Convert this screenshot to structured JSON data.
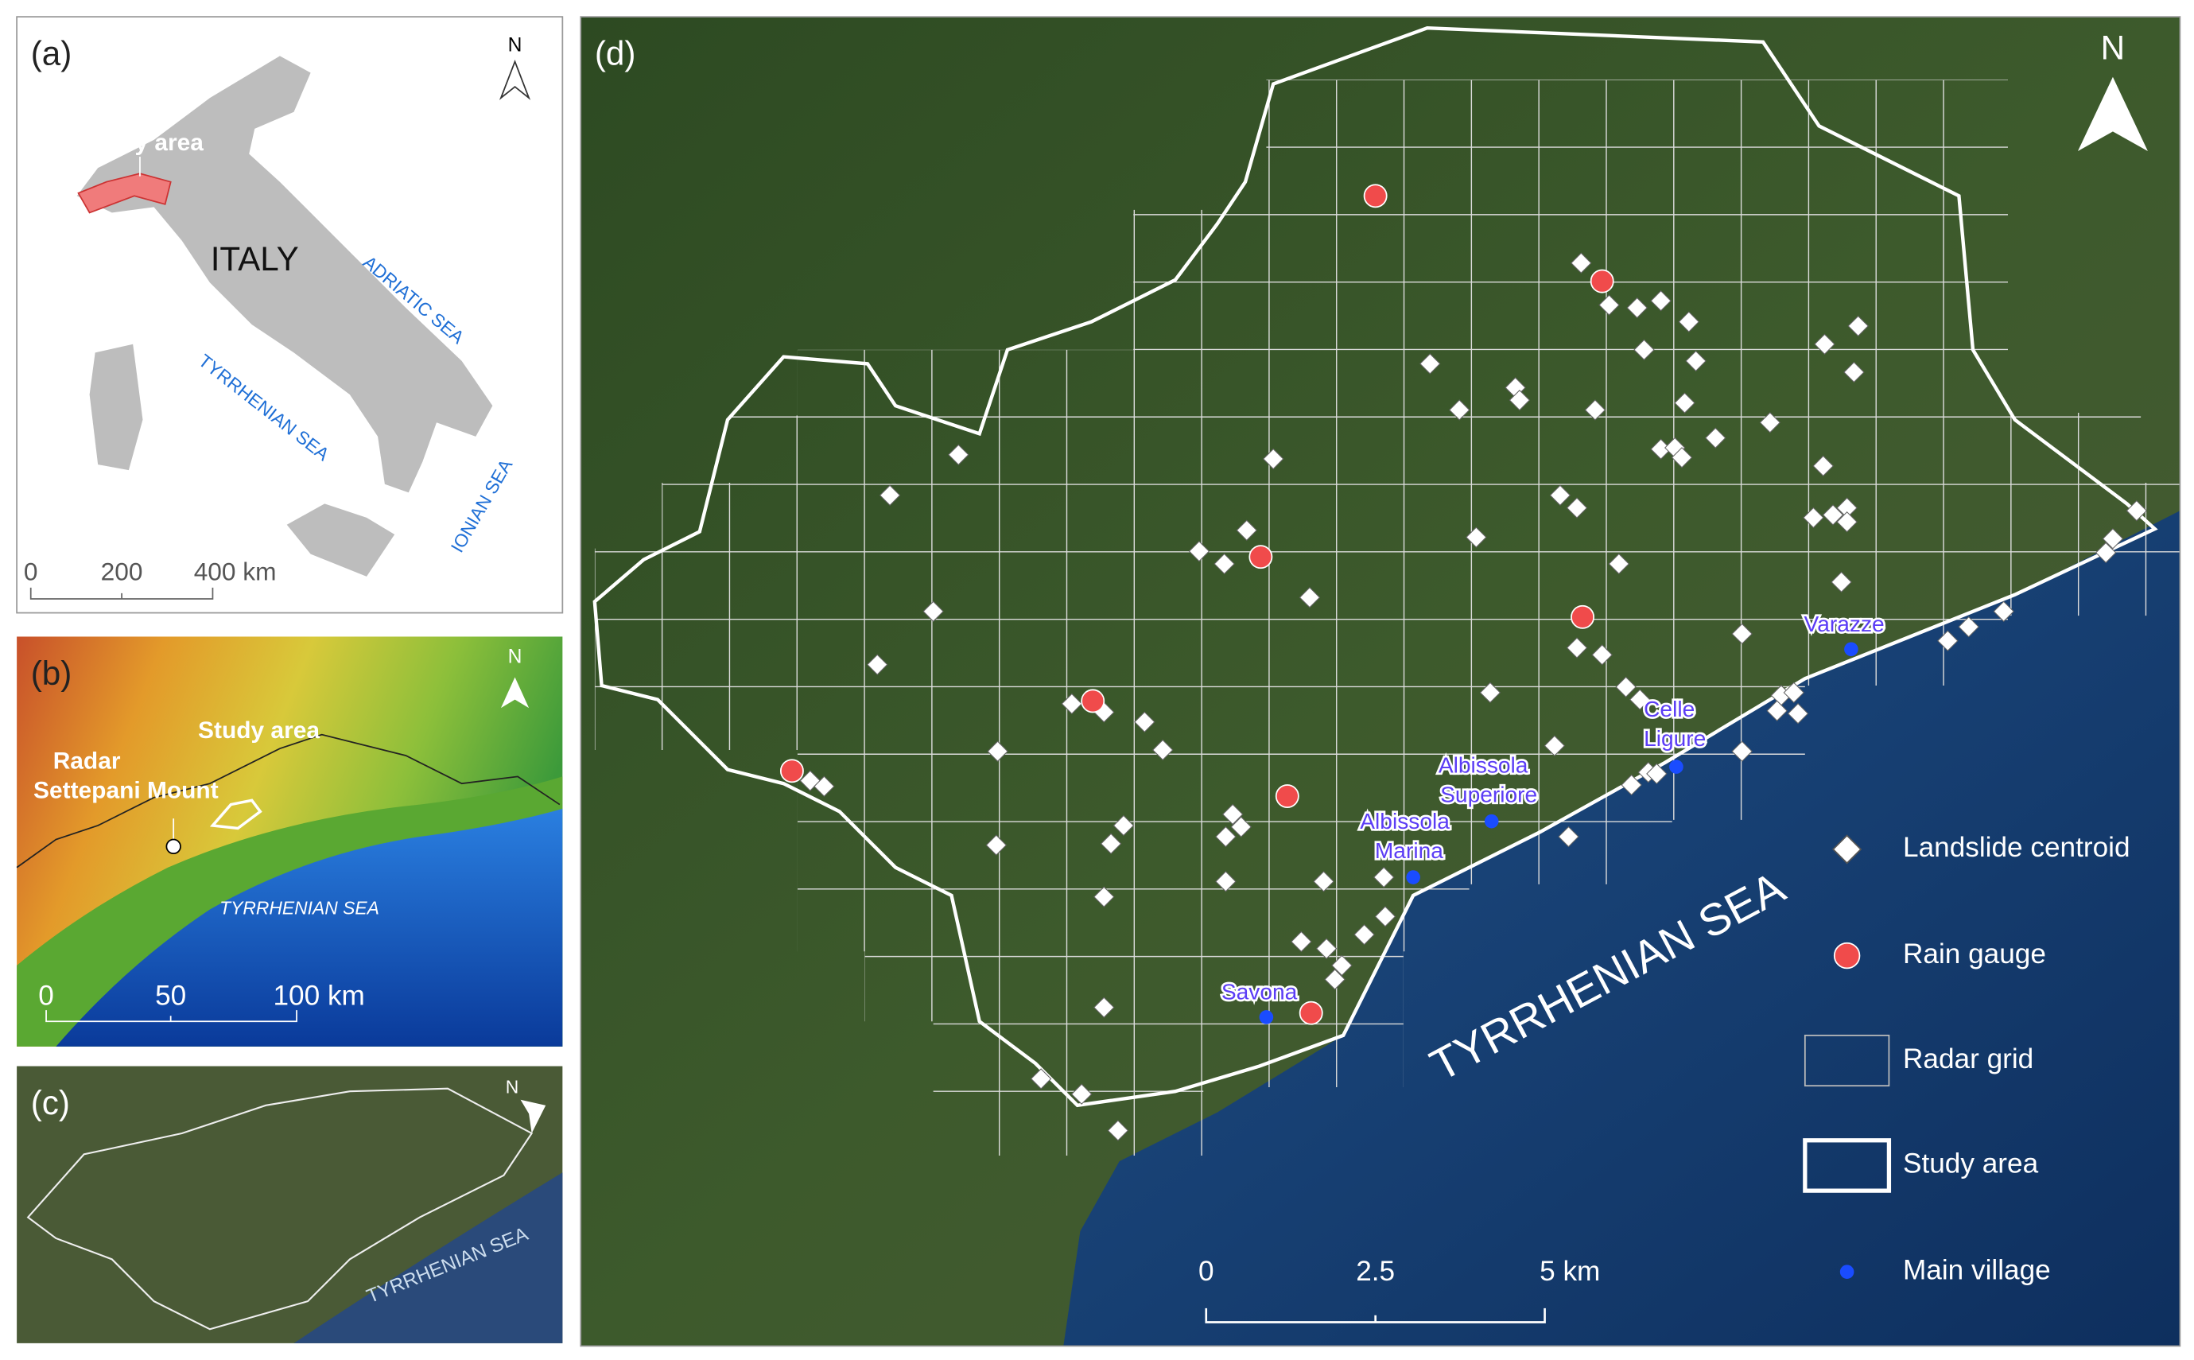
{
  "panels": {
    "a": {
      "label": "(a)",
      "north": "N",
      "study_area": "Study area",
      "country": "ITALY",
      "seas": [
        "ADRIATIC SEA",
        "TYRRHENIAN SEA",
        "IONIAN SEA"
      ],
      "scale_bar": [
        "0",
        "200",
        "400 km"
      ]
    },
    "b": {
      "label": "(b)",
      "north": "N",
      "study_area": "Study area",
      "radar": [
        "Radar",
        "Settepani Mount"
      ],
      "sea": "TYRRHENIAN SEA",
      "scale_bar": [
        "0",
        "50",
        "100 km"
      ]
    },
    "c": {
      "label": "(c)",
      "north": "N",
      "sea": "TYRRHENIAN SEA"
    },
    "d": {
      "label": "(d)",
      "north": "N",
      "sea": "TYRRHENIAN SEA",
      "villages": [
        {
          "lines": [
            "Varazze"
          ]
        },
        {
          "lines": [
            "Celle",
            "Ligure"
          ]
        },
        {
          "lines": [
            "Albissola",
            "Superiore"
          ]
        },
        {
          "lines": [
            "Albissola",
            "Marina"
          ]
        },
        {
          "lines": [
            "Savona"
          ]
        }
      ],
      "legend": [
        "Landslide centroid",
        "Rain gauge",
        "Radar grid",
        "Study area",
        "Main village"
      ],
      "scale_bar": [
        "0",
        "2.5",
        "5 km"
      ]
    }
  }
}
